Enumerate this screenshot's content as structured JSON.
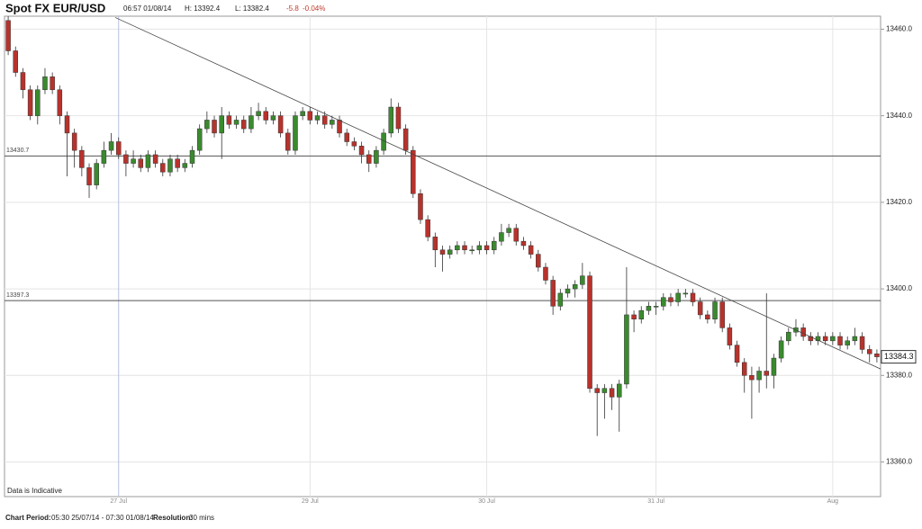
{
  "header": {
    "title": "Spot FX EUR/USD",
    "time": "06:57 01/08/14",
    "high": "H: 13392.4",
    "low": "L: 13382.4",
    "change": "-5.8",
    "change_pct": "-0.04%"
  },
  "footer": {
    "period_label": "Chart Period:",
    "period": "05:30 25/07/14 - 07:30 01/08/14",
    "resolution_label": "Resolution:",
    "resolution": "30 mins"
  },
  "chart_data": {
    "type": "candlestick",
    "note": "Data is Indicative",
    "categories": [
      null,
      null,
      null,
      null,
      null,
      null,
      null,
      null,
      null,
      null,
      null,
      null,
      null,
      null,
      null,
      "27 Jul",
      null,
      null,
      null,
      null,
      null,
      null,
      null,
      null,
      null,
      null,
      null,
      null,
      null,
      null,
      null,
      null,
      null,
      null,
      null,
      null,
      null,
      null,
      null,
      null,
      null,
      "29 Jul",
      null,
      null,
      null,
      null,
      null,
      null,
      null,
      null,
      null,
      null,
      null,
      null,
      null,
      null,
      null,
      null,
      null,
      null,
      null,
      null,
      null,
      null,
      null,
      "30 Jul",
      null,
      null,
      null,
      null,
      null,
      null,
      null,
      null,
      null,
      null,
      null,
      null,
      null,
      null,
      null,
      null,
      null,
      null,
      null,
      null,
      null,
      null,
      "31 Jul",
      null,
      null,
      null,
      null,
      null,
      null,
      null,
      null,
      null,
      null,
      null,
      null,
      null,
      null,
      null,
      null,
      null,
      null,
      null,
      null,
      null,
      null,
      null,
      "Aug",
      null,
      null,
      null,
      null,
      null,
      null
    ],
    "candles": [
      [
        13462,
        13463,
        13454,
        13455
      ],
      [
        13455,
        13456,
        13449,
        13450
      ],
      [
        13450,
        13451,
        13444,
        13446
      ],
      [
        13446,
        13447,
        13439,
        13440
      ],
      [
        13440,
        13447,
        13438,
        13446
      ],
      [
        13446,
        13451,
        13445,
        13449
      ],
      [
        13449,
        13450,
        13445,
        13446
      ],
      [
        13446,
        13447,
        13438,
        13440
      ],
      [
        13440,
        13441,
        13426,
        13436
      ],
      [
        13436,
        13437,
        13428,
        13432
      ],
      [
        13432,
        13433,
        13426,
        13428
      ],
      [
        13428,
        13429,
        13421,
        13424
      ],
      [
        13424,
        13430,
        13423,
        13429
      ],
      [
        13429,
        13434,
        13428,
        13432
      ],
      [
        13432,
        13436,
        13431,
        13434
      ],
      [
        13434,
        13435,
        13430,
        13431
      ],
      [
        13431,
        13432,
        13426,
        13429
      ],
      [
        13429,
        13432,
        13428,
        13430
      ],
      [
        13430,
        13431,
        13427,
        13428
      ],
      [
        13428,
        13432,
        13427,
        13431
      ],
      [
        13431,
        13432,
        13428,
        13429
      ],
      [
        13429,
        13430,
        13426,
        13427
      ],
      [
        13427,
        13431,
        13426,
        13430
      ],
      [
        13430,
        13431,
        13427,
        13428
      ],
      [
        13428,
        13430,
        13427,
        13429
      ],
      [
        13429,
        13433,
        13428,
        13432
      ],
      [
        13432,
        13438,
        13431,
        13437
      ],
      [
        13437,
        13441,
        13436,
        13439
      ],
      [
        13439,
        13440,
        13435,
        13436
      ],
      [
        13436,
        13442,
        13430,
        13440
      ],
      [
        13440,
        13441,
        13437,
        13438
      ],
      [
        13438,
        13440,
        13437,
        13439
      ],
      [
        13439,
        13440,
        13436,
        13437
      ],
      [
        13437,
        13442,
        13436,
        13440
      ],
      [
        13440,
        13443,
        13439,
        13441
      ],
      [
        13441,
        13442,
        13438,
        13439
      ],
      [
        13439,
        13441,
        13438,
        13440
      ],
      [
        13440,
        13441,
        13435,
        13436
      ],
      [
        13436,
        13437,
        13431,
        13432
      ],
      [
        13432,
        13441,
        13431,
        13440
      ],
      [
        13440,
        13442,
        13439,
        13441
      ],
      [
        13441,
        13442,
        13438,
        13439
      ],
      [
        13439,
        13441,
        13438,
        13440
      ],
      [
        13440,
        13441,
        13437,
        13438
      ],
      [
        13438,
        13440,
        13437,
        13439
      ],
      [
        13439,
        13440,
        13435,
        13436
      ],
      [
        13436,
        13437,
        13433,
        13434
      ],
      [
        13434,
        13435,
        13432,
        13433
      ],
      [
        13433,
        13434,
        13429,
        13431
      ],
      [
        13431,
        13432,
        13427,
        13429
      ],
      [
        13429,
        13433,
        13428,
        13432
      ],
      [
        13432,
        13437,
        13431,
        13436
      ],
      [
        13436,
        13444,
        13435,
        13442
      ],
      [
        13442,
        13443,
        13436,
        13437
      ],
      [
        13437,
        13438,
        13431,
        13432
      ],
      [
        13432,
        13433,
        13421,
        13422
      ],
      [
        13422,
        13423,
        13415,
        13416
      ],
      [
        13416,
        13417,
        13411,
        13412
      ],
      [
        13412,
        13413,
        13405,
        13409
      ],
      [
        13409,
        13410,
        13404,
        13408
      ],
      [
        13408,
        13410,
        13407,
        13409
      ],
      [
        13409,
        13411,
        13408,
        13410
      ],
      [
        13410,
        13411,
        13408,
        13409
      ],
      [
        13409,
        13410,
        13408,
        13409
      ],
      [
        13409,
        13411,
        13408,
        13410
      ],
      [
        13410,
        13411,
        13408,
        13409
      ],
      [
        13409,
        13412,
        13408,
        13411
      ],
      [
        13411,
        13415,
        13410,
        13413
      ],
      [
        13413,
        13415,
        13412,
        13414
      ],
      [
        13414,
        13415,
        13410,
        13411
      ],
      [
        13411,
        13412,
        13409,
        13410
      ],
      [
        13410,
        13411,
        13407,
        13408
      ],
      [
        13408,
        13409,
        13404,
        13405
      ],
      [
        13405,
        13406,
        13401,
        13402
      ],
      [
        13402,
        13403,
        13394,
        13396
      ],
      [
        13396,
        13400,
        13395,
        13399
      ],
      [
        13399,
        13401,
        13398,
        13400
      ],
      [
        13400,
        13402,
        13398,
        13401
      ],
      [
        13401,
        13406,
        13400,
        13403
      ],
      [
        13403,
        13404,
        13376,
        13377
      ],
      [
        13377,
        13378,
        13366,
        13376
      ],
      [
        13376,
        13378,
        13370,
        13377
      ],
      [
        13377,
        13378,
        13372,
        13375
      ],
      [
        13375,
        13379,
        13367,
        13378
      ],
      [
        13378,
        13405,
        13377,
        13394
      ],
      [
        13394,
        13395,
        13390,
        13393
      ],
      [
        13393,
        13396,
        13392,
        13395
      ],
      [
        13395,
        13397,
        13394,
        13396
      ],
      [
        13396,
        13397,
        13394,
        13396
      ],
      [
        13396,
        13399,
        13395,
        13398
      ],
      [
        13398,
        13399,
        13396,
        13397
      ],
      [
        13397,
        13400,
        13396,
        13399
      ],
      [
        13399,
        13400,
        13398,
        13399
      ],
      [
        13399,
        13400,
        13396,
        13397
      ],
      [
        13397,
        13398,
        13393,
        13394
      ],
      [
        13394,
        13395,
        13392,
        13393
      ],
      [
        13393,
        13398,
        13392,
        13397
      ],
      [
        13397,
        13398,
        13390,
        13391
      ],
      [
        13391,
        13392,
        13386,
        13387
      ],
      [
        13387,
        13388,
        13382,
        13383
      ],
      [
        13383,
        13384,
        13376,
        13380
      ],
      [
        13380,
        13382,
        13370,
        13379
      ],
      [
        13379,
        13382,
        13376,
        13381
      ],
      [
        13381,
        13399,
        13377,
        13380
      ],
      [
        13380,
        13385,
        13377,
        13384
      ],
      [
        13384,
        13389,
        13383,
        13388
      ],
      [
        13388,
        13391,
        13387,
        13390
      ],
      [
        13390,
        13393,
        13389,
        13391
      ],
      [
        13391,
        13392,
        13388,
        13389
      ],
      [
        13389,
        13390,
        13387,
        13388
      ],
      [
        13388,
        13390,
        13387,
        13389
      ],
      [
        13389,
        13390,
        13387,
        13388
      ],
      [
        13388,
        13390,
        13387,
        13389
      ],
      [
        13389,
        13390,
        13386,
        13387
      ],
      [
        13387,
        13389,
        13386,
        13388
      ],
      [
        13388,
        13391,
        13387,
        13389
      ],
      [
        13389,
        13390,
        13385,
        13386
      ],
      [
        13386,
        13387,
        13383,
        13385
      ],
      [
        13385,
        13386,
        13383,
        13384.3
      ]
    ],
    "up_color": "#3a8a2e",
    "down_color": "#b8322c",
    "ylim": [
      13352,
      13463
    ],
    "yticks": [
      {
        "value": 13360,
        "label": "13360.0"
      },
      {
        "value": 13380,
        "label": "13380.0"
      },
      {
        "value": 13400,
        "label": "13400.0"
      },
      {
        "value": 13420,
        "label": "13420.0"
      },
      {
        "value": 13440,
        "label": "13440.0"
      },
      {
        "value": 13460,
        "label": "13460.0"
      }
    ],
    "hlines": [
      13430.7,
      13397.3
    ],
    "trendline": [
      13462.7,
      13381.5
    ],
    "last_price": 13384.3,
    "grid": true
  }
}
